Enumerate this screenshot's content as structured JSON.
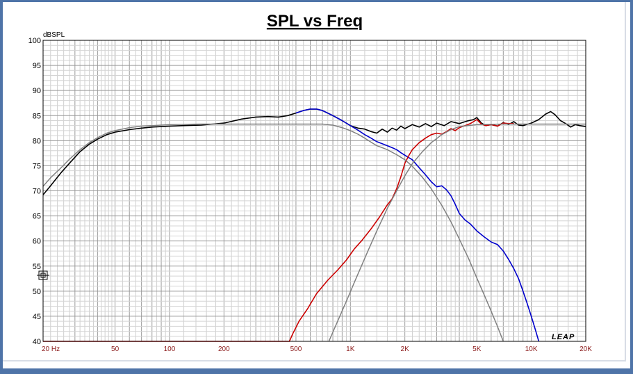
{
  "chart_data": {
    "type": "line",
    "title": "SPL vs Freq",
    "ylabel": "dBSPL",
    "x_scale": "log",
    "xlim": [
      20,
      20000
    ],
    "ylim": [
      40,
      100
    ],
    "grid": true,
    "y_ticks": [
      "100",
      "95",
      "90",
      "85",
      "80",
      "75",
      "70",
      "65",
      "60",
      "55",
      "50",
      "45",
      "40"
    ],
    "x_ticks": [
      {
        "label": "20  Hz",
        "hz": 20
      },
      {
        "label": "50",
        "hz": 50
      },
      {
        "label": "100",
        "hz": 100
      },
      {
        "label": "200",
        "hz": 200
      },
      {
        "label": "500",
        "hz": 500
      },
      {
        "label": "1K",
        "hz": 1000
      },
      {
        "label": "2K",
        "hz": 2000
      },
      {
        "label": "5K",
        "hz": 5000
      },
      {
        "label": "10K",
        "hz": 10000
      },
      {
        "label": "20K",
        "hz": 20000
      }
    ],
    "logo": "LEAP",
    "series": [
      {
        "color": "#000000",
        "width": 1.6,
        "points": [
          [
            20,
            69.2
          ],
          [
            22,
            71
          ],
          [
            25,
            73.5
          ],
          [
            28,
            75.5
          ],
          [
            32,
            77.8
          ],
          [
            36,
            79.3
          ],
          [
            40,
            80.3
          ],
          [
            45,
            81.2
          ],
          [
            50,
            81.7
          ],
          [
            60,
            82.2
          ],
          [
            70,
            82.5
          ],
          [
            80,
            82.7
          ],
          [
            100,
            82.9
          ],
          [
            120,
            83
          ],
          [
            150,
            83.1
          ],
          [
            200,
            83.5
          ],
          [
            250,
            84.3
          ],
          [
            300,
            84.7
          ],
          [
            350,
            84.8
          ],
          [
            400,
            84.7
          ],
          [
            450,
            85
          ],
          [
            500,
            85.5
          ],
          [
            550,
            86
          ],
          [
            600,
            86.3
          ],
          [
            650,
            86.3
          ],
          [
            700,
            86
          ],
          [
            800,
            85
          ],
          [
            900,
            84
          ],
          [
            1000,
            83
          ],
          [
            1100,
            82.5
          ],
          [
            1200,
            82.3
          ],
          [
            1300,
            81.8
          ],
          [
            1400,
            81.5
          ],
          [
            1500,
            82.3
          ],
          [
            1600,
            81.7
          ],
          [
            1700,
            82.5
          ],
          [
            1800,
            82.1
          ],
          [
            1900,
            82.9
          ],
          [
            2000,
            82.4
          ],
          [
            2200,
            83.2
          ],
          [
            2400,
            82.7
          ],
          [
            2600,
            83.4
          ],
          [
            2800,
            82.8
          ],
          [
            3000,
            83.5
          ],
          [
            3300,
            83
          ],
          [
            3600,
            83.8
          ],
          [
            4000,
            83.4
          ],
          [
            4400,
            83.9
          ],
          [
            4800,
            84.2
          ],
          [
            5000,
            84.6
          ],
          [
            5300,
            83.5
          ],
          [
            5600,
            83
          ],
          [
            6000,
            83.2
          ],
          [
            6500,
            82.9
          ],
          [
            7000,
            83.6
          ],
          [
            7500,
            83.2
          ],
          [
            8000,
            83.8
          ],
          [
            8500,
            83.1
          ],
          [
            9000,
            83
          ],
          [
            10000,
            83.5
          ],
          [
            11000,
            84.2
          ],
          [
            12000,
            85.3
          ],
          [
            12800,
            85.8
          ],
          [
            13500,
            85.2
          ],
          [
            14500,
            84
          ],
          [
            15500,
            83.4
          ],
          [
            16500,
            82.7
          ],
          [
            17500,
            83.2
          ],
          [
            18500,
            83
          ],
          [
            20000,
            82.8
          ]
        ]
      },
      {
        "color": "#0000cc",
        "width": 1.6,
        "points": [
          [
            500,
            85.5
          ],
          [
            550,
            86
          ],
          [
            600,
            86.3
          ],
          [
            650,
            86.3
          ],
          [
            700,
            86
          ],
          [
            800,
            85
          ],
          [
            900,
            84
          ],
          [
            1000,
            83
          ],
          [
            1100,
            82.1
          ],
          [
            1200,
            81.2
          ],
          [
            1300,
            80.5
          ],
          [
            1400,
            79.8
          ],
          [
            1500,
            79.4
          ],
          [
            1600,
            79
          ],
          [
            1700,
            78.6
          ],
          [
            1800,
            78.2
          ],
          [
            1900,
            77.6
          ],
          [
            2000,
            77.1
          ],
          [
            2200,
            76.2
          ],
          [
            2400,
            74.6
          ],
          [
            2600,
            73.2
          ],
          [
            2800,
            71.8
          ],
          [
            3000,
            70.8
          ],
          [
            3200,
            71
          ],
          [
            3400,
            70.2
          ],
          [
            3600,
            69
          ],
          [
            3800,
            67.3
          ],
          [
            4000,
            65.5
          ],
          [
            4300,
            64.2
          ],
          [
            4600,
            63.4
          ],
          [
            5000,
            62
          ],
          [
            5500,
            60.8
          ],
          [
            6000,
            59.8
          ],
          [
            6500,
            59.3
          ],
          [
            7000,
            58
          ],
          [
            7500,
            56.3
          ],
          [
            8000,
            54.5
          ],
          [
            8500,
            52.5
          ],
          [
            9000,
            50
          ],
          [
            9500,
            47.5
          ],
          [
            10000,
            45
          ],
          [
            10500,
            42.5
          ],
          [
            11000,
            40
          ]
        ]
      },
      {
        "color": "#cc0000",
        "width": 1.6,
        "points": [
          [
            20,
            40
          ],
          [
            460,
            40
          ],
          [
            480,
            41.5
          ],
          [
            520,
            44
          ],
          [
            580,
            46.5
          ],
          [
            650,
            49.5
          ],
          [
            750,
            52.2
          ],
          [
            850,
            54.2
          ],
          [
            950,
            56.2
          ],
          [
            1050,
            58.4
          ],
          [
            1150,
            60
          ],
          [
            1300,
            62.4
          ],
          [
            1450,
            64.8
          ],
          [
            1600,
            67.2
          ],
          [
            1700,
            68.4
          ],
          [
            1800,
            70.4
          ],
          [
            1900,
            72.8
          ],
          [
            2000,
            75.5
          ],
          [
            2100,
            77
          ],
          [
            2200,
            78.2
          ],
          [
            2400,
            79.6
          ],
          [
            2600,
            80.5
          ],
          [
            2800,
            81.2
          ],
          [
            3000,
            81.5
          ],
          [
            3200,
            81.3
          ],
          [
            3400,
            81.8
          ],
          [
            3600,
            82.4
          ],
          [
            3800,
            82
          ],
          [
            4000,
            82.6
          ],
          [
            4300,
            83
          ],
          [
            4600,
            83.4
          ],
          [
            5000,
            84.2
          ],
          [
            5300,
            83.3
          ],
          [
            5600,
            83
          ],
          [
            6000,
            83.2
          ],
          [
            6500,
            82.9
          ],
          [
            7000,
            83.5
          ],
          [
            7500,
            83.4
          ],
          [
            8000,
            83.4
          ]
        ]
      },
      {
        "color": "#808080",
        "width": 1.5,
        "points": [
          [
            20,
            70.9
          ],
          [
            22,
            72.6
          ],
          [
            25,
            74.5
          ],
          [
            28,
            76.3
          ],
          [
            32,
            78.2
          ],
          [
            36,
            79.6
          ],
          [
            40,
            80.6
          ],
          [
            45,
            81.5
          ],
          [
            50,
            82
          ],
          [
            60,
            82.6
          ],
          [
            70,
            82.9
          ],
          [
            80,
            83
          ],
          [
            100,
            83.2
          ],
          [
            150,
            83.3
          ],
          [
            200,
            83.3
          ],
          [
            300,
            83.3
          ],
          [
            500,
            83.3
          ],
          [
            700,
            83.3
          ],
          [
            800,
            83.1
          ],
          [
            900,
            82.6
          ],
          [
            1000,
            82
          ],
          [
            1100,
            81.3
          ],
          [
            1200,
            80.5
          ],
          [
            1300,
            79.7
          ],
          [
            1400,
            79
          ],
          [
            1500,
            78.6
          ],
          [
            1600,
            78.2
          ],
          [
            1800,
            77.2
          ],
          [
            2000,
            76.2
          ],
          [
            2200,
            74.9
          ],
          [
            2500,
            72.7
          ],
          [
            2800,
            70.4
          ],
          [
            3200,
            67.1
          ],
          [
            3600,
            63.8
          ],
          [
            4000,
            60.4
          ],
          [
            4500,
            56.5
          ],
          [
            5000,
            52.6
          ],
          [
            5500,
            49.2
          ],
          [
            6000,
            46
          ],
          [
            6500,
            43
          ],
          [
            7000,
            40
          ]
        ]
      },
      {
        "color": "#808080",
        "width": 1.5,
        "points": [
          [
            760,
            40
          ],
          [
            850,
            44
          ],
          [
            950,
            48
          ],
          [
            1050,
            51.7
          ],
          [
            1150,
            55
          ],
          [
            1250,
            58
          ],
          [
            1400,
            62
          ],
          [
            1600,
            66.5
          ],
          [
            1800,
            70
          ],
          [
            2000,
            73
          ],
          [
            2200,
            75.4
          ],
          [
            2500,
            77.8
          ],
          [
            2800,
            79.6
          ],
          [
            3200,
            81.2
          ],
          [
            3600,
            82.2
          ],
          [
            4000,
            82.8
          ],
          [
            5000,
            83.2
          ],
          [
            7000,
            83.3
          ],
          [
            10000,
            83.3
          ],
          [
            20000,
            83.3
          ]
        ]
      }
    ]
  }
}
